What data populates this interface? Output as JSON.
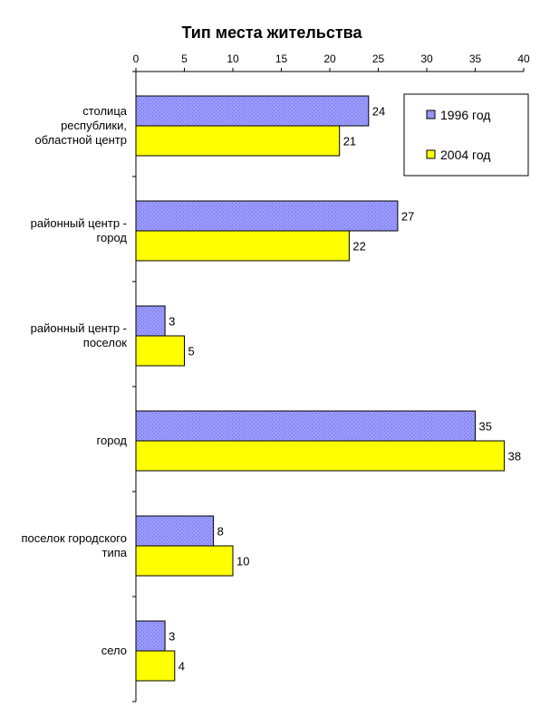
{
  "chart_data": {
    "type": "bar",
    "orientation": "horizontal",
    "title": "Тип места жительства",
    "xlabel": "",
    "ylabel": "",
    "xlim": [
      0,
      40
    ],
    "x_ticks": [
      "0",
      "5",
      "10",
      "15",
      "20",
      "25",
      "30",
      "35",
      "40"
    ],
    "x_axis_position": "top",
    "grid": false,
    "legend_position": "top-right",
    "categories": [
      [
        "столица",
        "республики,",
        "областной центр"
      ],
      [
        "районный центр -",
        "город"
      ],
      [
        "районный центр -",
        "поселок"
      ],
      [
        "город"
      ],
      [
        "поселок городского",
        "типа"
      ],
      [
        "село"
      ]
    ],
    "series": [
      {
        "name": "1996 год",
        "color": "#9999ff",
        "pattern": "dotted",
        "values": [
          24,
          27,
          3,
          35,
          8,
          3
        ]
      },
      {
        "name": "2004 год",
        "color": "#ffff00",
        "values": [
          21,
          22,
          5,
          38,
          10,
          4
        ]
      }
    ]
  }
}
